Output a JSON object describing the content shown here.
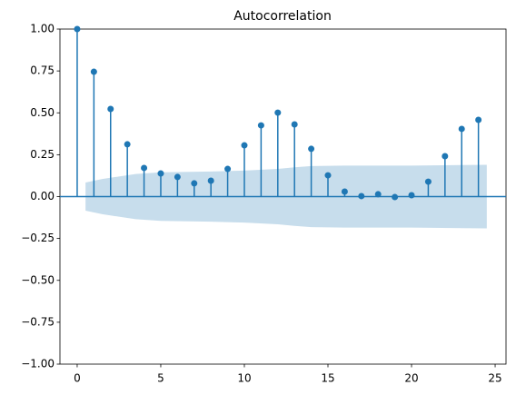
{
  "chart_data": {
    "type": "stem",
    "title": "Autocorrelation",
    "x": [
      0,
      1,
      2,
      3,
      4,
      5,
      6,
      7,
      8,
      9,
      10,
      11,
      12,
      13,
      14,
      15,
      16,
      17,
      18,
      19,
      20,
      21,
      22,
      23,
      24
    ],
    "values": [
      1.0,
      0.745,
      0.523,
      0.312,
      0.171,
      0.138,
      0.117,
      0.079,
      0.095,
      0.165,
      0.306,
      0.425,
      0.501,
      0.431,
      0.285,
      0.127,
      0.03,
      0.003,
      0.014,
      -0.003,
      0.008,
      0.089,
      0.241,
      0.404,
      0.458
    ],
    "color": "#1f77b4",
    "band": {
      "x": [
        0.5,
        1.5,
        2.5,
        3.5,
        5,
        8,
        10,
        12,
        13,
        14,
        16,
        20,
        24.5
      ],
      "upper": [
        0.084,
        0.105,
        0.12,
        0.135,
        0.145,
        0.15,
        0.155,
        0.165,
        0.175,
        0.182,
        0.185,
        0.185,
        0.19
      ],
      "lower": [
        -0.084,
        -0.105,
        -0.12,
        -0.135,
        -0.145,
        -0.15,
        -0.155,
        -0.165,
        -0.175,
        -0.182,
        -0.185,
        -0.185,
        -0.19
      ],
      "color": "#1f77b4",
      "opacity": 0.25
    },
    "xlim": [
      -1.03,
      25.65
    ],
    "ylim": [
      -1,
      1
    ],
    "xticks": [
      0,
      5,
      10,
      15,
      20,
      25
    ],
    "yticks": [
      {
        "value": -1,
        "label": "−1.00"
      },
      {
        "value": -0.75,
        "label": "−0.75"
      },
      {
        "value": -0.5,
        "label": "−0.50"
      },
      {
        "value": -0.25,
        "label": "−0.25"
      },
      {
        "value": 0,
        "label": "0.00"
      },
      {
        "value": 0.25,
        "label": "0.25"
      },
      {
        "value": 0.5,
        "label": "0.50"
      },
      {
        "value": 0.75,
        "label": "0.75"
      },
      {
        "value": 1,
        "label": "1.00"
      }
    ]
  }
}
